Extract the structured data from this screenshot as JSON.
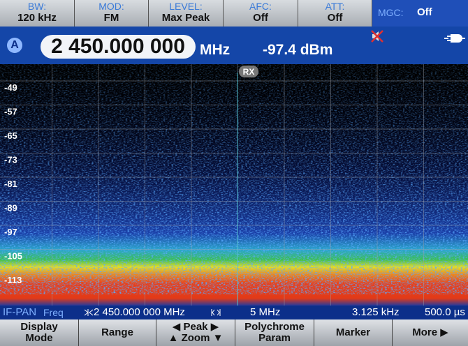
{
  "top_bar": {
    "items": [
      {
        "label": "BW:",
        "value": "120 kHz"
      },
      {
        "label": "MOD:",
        "value": "FM"
      },
      {
        "label": "LEVEL:",
        "value": "Max Peak"
      },
      {
        "label": "AFC:",
        "value": "Off"
      },
      {
        "label": "ATT:",
        "value": "Off"
      }
    ],
    "mgc": {
      "label": "MGC:",
      "value": "Off"
    }
  },
  "frequency_bar": {
    "trace": "A",
    "frequency": "2 450.000 000",
    "unit": "MHz",
    "level": "-97.4 dBm"
  },
  "display": {
    "badge": "RX",
    "level_labels": [
      "-49",
      "-57",
      "-65",
      "-73",
      "-81",
      "-89",
      "-97",
      "-105",
      "-113"
    ]
  },
  "status_bar": {
    "mode": "IF-PAN",
    "param": "Freq",
    "center": "2 450.000 000 MHz",
    "span": "5 MHz",
    "resolution": "3.125 kHz",
    "time": "500.0 µs"
  },
  "softkeys": [
    {
      "lines": [
        "Display",
        "Mode"
      ]
    },
    {
      "lines": [
        "Range"
      ]
    },
    {
      "lines": [
        "◀ Peak ▶",
        "▲ Zoom ▼"
      ]
    },
    {
      "lines": [
        "Polychrome",
        "Param"
      ]
    },
    {
      "lines": [
        "Marker"
      ]
    },
    {
      "lines": [
        "More ▶"
      ]
    }
  ]
}
